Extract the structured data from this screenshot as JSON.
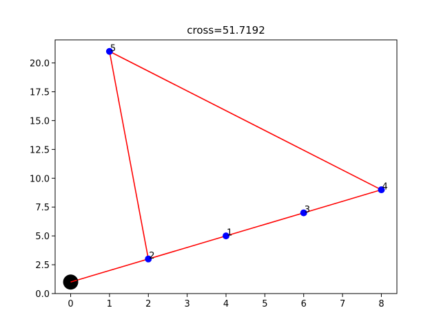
{
  "chart_data": {
    "type": "scatter",
    "title": "cross=51.7192",
    "xlabel": "",
    "ylabel": "",
    "xlim": [
      -0.4,
      8.4
    ],
    "ylim": [
      -0.0,
      22.0
    ],
    "xticks": [
      "0",
      "1",
      "2",
      "3",
      "4",
      "5",
      "6",
      "7",
      "8"
    ],
    "yticks": [
      "0.0",
      "2.5",
      "5.0",
      "7.5",
      "10.0",
      "12.5",
      "15.0",
      "17.5",
      "20.0"
    ],
    "grid": false,
    "points": [
      {
        "label": "1",
        "x": 4,
        "y": 5
      },
      {
        "label": "2",
        "x": 2,
        "y": 3
      },
      {
        "label": "3",
        "x": 6,
        "y": 7
      },
      {
        "label": "4",
        "x": 8,
        "y": 9
      },
      {
        "label": "5",
        "x": 1,
        "y": 21
      }
    ],
    "start_point": {
      "x": 0,
      "y": 1
    },
    "path_order": [
      0,
      2,
      1,
      3,
      4,
      5,
      2
    ],
    "colors": {
      "path": "#ff0000",
      "points": "#0000ff",
      "start": "#000000"
    }
  }
}
